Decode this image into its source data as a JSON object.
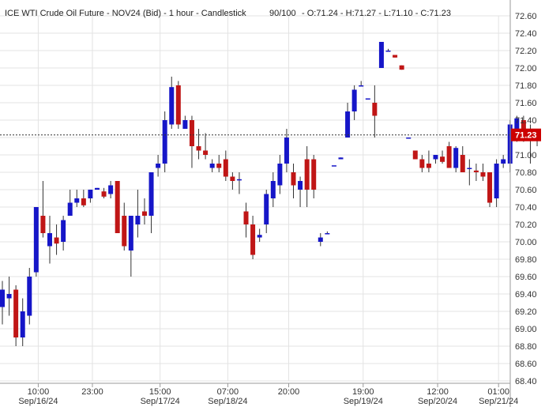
{
  "header": {
    "title": "ICE WTI Crude Oil Future - NOV24 (Bid) - 1 hour - Candlestick",
    "count": "90/100",
    "ohlc": "- O:71.24 - H:71.27 - L:71.10 - C:71.23"
  },
  "colors": {
    "up": "#1616c8",
    "down": "#c01616",
    "grid": "#e3e3e3",
    "last_price_bg": "#cc0000",
    "last_line": "#333333"
  },
  "chart_data": {
    "type": "candlestick",
    "instrument": "ICE WTI Crude Oil Future - NOV24 (Bid)",
    "interval": "1 hour",
    "y_axis": {
      "min": 68.4,
      "max": 72.6,
      "step": 0.2,
      "ticks": [
        "72.60",
        "72.40",
        "72.20",
        "72.00",
        "71.80",
        "71.60",
        "71.40",
        "71.20",
        "71.00",
        "70.80",
        "70.60",
        "70.40",
        "70.20",
        "70.00",
        "69.80",
        "69.60",
        "69.40",
        "69.20",
        "69.00",
        "68.80",
        "68.60",
        "68.40"
      ],
      "position": "right"
    },
    "x_axis": {
      "ticks": [
        {
          "time": "10:00",
          "date": "Sep/16/24",
          "index": 2
        },
        {
          "time": "23:00",
          "date": "",
          "index": 10
        },
        {
          "time": "15:00",
          "date": "Sep/17/24",
          "index": 20
        },
        {
          "time": "07:00",
          "date": "Sep/18/24",
          "index": 30
        },
        {
          "time": "20:00",
          "date": "",
          "index": 39
        },
        {
          "time": "19:00",
          "date": "Sep/19/24",
          "index": 50
        },
        {
          "time": "12:00",
          "date": "Sep/20/24",
          "index": 61
        },
        {
          "time": "01:00",
          "date": "Sep/21/24",
          "index": 70
        }
      ]
    },
    "last_price": 71.23,
    "grid": true,
    "candles": [
      {
        "o": 69.25,
        "h": 69.55,
        "l": 69.05,
        "c": 69.45
      },
      {
        "o": 69.35,
        "h": 69.6,
        "l": 69.15,
        "c": 69.4
      },
      {
        "o": 69.45,
        "h": 69.5,
        "l": 68.8,
        "c": 68.9
      },
      {
        "o": 68.9,
        "h": 69.35,
        "l": 68.8,
        "c": 69.2
      },
      {
        "o": 69.15,
        "h": 69.7,
        "l": 69.05,
        "c": 69.6
      },
      {
        "o": 69.65,
        "h": 70.4,
        "l": 69.6,
        "c": 70.4
      },
      {
        "o": 70.3,
        "h": 70.7,
        "l": 70.05,
        "c": 70.1
      },
      {
        "o": 69.95,
        "h": 70.3,
        "l": 69.75,
        "c": 70.1
      },
      {
        "o": 70.05,
        "h": 70.2,
        "l": 69.85,
        "c": 69.98
      },
      {
        "o": 70.0,
        "h": 70.3,
        "l": 69.9,
        "c": 70.25
      },
      {
        "o": 70.3,
        "h": 70.6,
        "l": 70.3,
        "c": 70.45
      },
      {
        "o": 70.45,
        "h": 70.6,
        "l": 70.4,
        "c": 70.5
      },
      {
        "o": 70.5,
        "h": 70.6,
        "l": 70.4,
        "c": 70.42
      },
      {
        "o": 70.5,
        "h": 70.6,
        "l": 70.45,
        "c": 70.6
      },
      {
        "o": 70.6,
        "h": 70.62,
        "l": 70.6,
        "c": 70.62
      },
      {
        "o": 70.58,
        "h": 70.62,
        "l": 70.5,
        "c": 70.52
      },
      {
        "o": 70.55,
        "h": 70.7,
        "l": 70.5,
        "c": 70.65
      },
      {
        "o": 70.7,
        "h": 70.7,
        "l": 70.1,
        "c": 70.1
      },
      {
        "o": 70.3,
        "h": 70.45,
        "l": 69.9,
        "c": 69.95
      },
      {
        "o": 69.9,
        "h": 70.3,
        "l": 69.6,
        "c": 70.3
      },
      {
        "o": 70.2,
        "h": 70.6,
        "l": 70.05,
        "c": 70.3
      },
      {
        "o": 70.35,
        "h": 70.5,
        "l": 70.2,
        "c": 70.3
      },
      {
        "o": 70.3,
        "h": 70.8,
        "l": 70.1,
        "c": 70.8
      },
      {
        "o": 70.85,
        "h": 71.0,
        "l": 70.75,
        "c": 70.9
      },
      {
        "o": 70.9,
        "h": 71.5,
        "l": 70.8,
        "c": 71.4
      },
      {
        "o": 71.35,
        "h": 71.9,
        "l": 71.3,
        "c": 71.78
      },
      {
        "o": 71.8,
        "h": 71.85,
        "l": 71.3,
        "c": 71.35
      },
      {
        "o": 71.3,
        "h": 71.45,
        "l": 71.3,
        "c": 71.4
      },
      {
        "o": 71.4,
        "h": 71.45,
        "l": 70.85,
        "c": 71.1
      },
      {
        "o": 71.1,
        "h": 71.3,
        "l": 70.95,
        "c": 71.05
      },
      {
        "o": 71.05,
        "h": 71.25,
        "l": 70.95,
        "c": 71.0
      },
      {
        "o": 70.85,
        "h": 70.95,
        "l": 70.8,
        "c": 70.9
      },
      {
        "o": 70.9,
        "h": 71.0,
        "l": 70.8,
        "c": 70.85
      },
      {
        "o": 70.95,
        "h": 71.05,
        "l": 70.7,
        "c": 70.75
      },
      {
        "o": 70.75,
        "h": 70.8,
        "l": 70.6,
        "c": 70.7
      },
      {
        "o": 70.72,
        "h": 70.8,
        "l": 70.55,
        "c": 70.72
      },
      {
        "o": 70.35,
        "h": 70.45,
        "l": 70.05,
        "c": 70.2
      },
      {
        "o": 70.2,
        "h": 70.3,
        "l": 69.8,
        "c": 69.85
      },
      {
        "o": 70.05,
        "h": 70.15,
        "l": 70.0,
        "c": 70.08
      },
      {
        "o": 70.2,
        "h": 70.6,
        "l": 70.1,
        "c": 70.55
      },
      {
        "o": 70.5,
        "h": 70.8,
        "l": 70.4,
        "c": 70.7
      },
      {
        "o": 70.65,
        "h": 71.0,
        "l": 70.55,
        "c": 70.9
      },
      {
        "o": 70.9,
        "h": 71.3,
        "l": 70.8,
        "c": 71.2
      },
      {
        "o": 70.8,
        "h": 70.9,
        "l": 70.5,
        "c": 70.65
      },
      {
        "o": 70.6,
        "h": 70.75,
        "l": 70.4,
        "c": 70.7
      },
      {
        "o": 70.95,
        "h": 71.1,
        "l": 70.4,
        "c": 70.6
      },
      {
        "o": 70.95,
        "h": 71.0,
        "l": 70.5,
        "c": 70.6
      },
      {
        "o": 70.0,
        "h": 70.1,
        "l": 69.95,
        "c": 70.05
      },
      {
        "o": 70.1,
        "h": 70.12,
        "l": 70.1,
        "c": 70.1
      },
      {
        "o": 70.88,
        "h": 70.88,
        "l": 70.88,
        "c": 70.88
      },
      {
        "o": 70.95,
        "h": 70.97,
        "l": 70.95,
        "c": 70.97
      },
      {
        "o": 71.2,
        "h": 71.6,
        "l": 71.2,
        "c": 71.5
      },
      {
        "o": 71.5,
        "h": 71.8,
        "l": 71.4,
        "c": 71.75
      },
      {
        "o": 71.8,
        "h": 71.85,
        "l": 71.8,
        "c": 71.8
      },
      {
        "o": 71.65,
        "h": 71.65,
        "l": 71.65,
        "c": 71.65
      },
      {
        "o": 71.6,
        "h": 71.8,
        "l": 71.2,
        "c": 71.45
      },
      {
        "o": 72.0,
        "h": 72.3,
        "l": 72.0,
        "c": 72.3
      },
      {
        "o": 72.2,
        "h": 72.22,
        "l": 72.2,
        "c": 72.2
      },
      {
        "o": 72.15,
        "h": 72.15,
        "l": 72.12,
        "c": 72.12
      },
      {
        "o": 72.03,
        "h": 72.03,
        "l": 71.98,
        "c": 71.98
      },
      {
        "o": 71.2,
        "h": 71.2,
        "l": 71.2,
        "c": 71.2
      },
      {
        "o": 71.05,
        "h": 71.05,
        "l": 70.95,
        "c": 70.95
      },
      {
        "o": 70.95,
        "h": 71.0,
        "l": 70.8,
        "c": 70.85
      },
      {
        "o": 70.9,
        "h": 71.05,
        "l": 70.8,
        "c": 70.85
      },
      {
        "o": 70.95,
        "h": 71.0,
        "l": 70.9,
        "c": 71.0
      },
      {
        "o": 70.98,
        "h": 71.05,
        "l": 70.9,
        "c": 70.92
      },
      {
        "o": 71.1,
        "h": 71.15,
        "l": 70.85,
        "c": 70.85
      },
      {
        "o": 70.85,
        "h": 71.1,
        "l": 70.8,
        "c": 71.08
      },
      {
        "o": 71.0,
        "h": 71.1,
        "l": 70.8,
        "c": 70.8
      },
      {
        "o": 70.85,
        "h": 70.95,
        "l": 70.65,
        "c": 70.85
      },
      {
        "o": 70.82,
        "h": 70.9,
        "l": 70.7,
        "c": 70.8
      },
      {
        "o": 70.8,
        "h": 70.9,
        "l": 70.7,
        "c": 70.75
      },
      {
        "o": 70.8,
        "h": 70.8,
        "l": 70.4,
        "c": 70.45
      },
      {
        "o": 70.5,
        "h": 70.95,
        "l": 70.4,
        "c": 70.9
      },
      {
        "o": 70.9,
        "h": 71.0,
        "l": 70.85,
        "c": 70.95
      },
      {
        "o": 70.9,
        "h": 71.4,
        "l": 70.8,
        "c": 71.35
      },
      {
        "o": 71.3,
        "h": 71.45,
        "l": 71.15,
        "c": 71.42
      },
      {
        "o": 71.4,
        "h": 71.45,
        "l": 71.15,
        "c": 71.2
      },
      {
        "o": 71.2,
        "h": 71.35,
        "l": 70.9,
        "c": 71.25
      },
      {
        "o": 71.24,
        "h": 71.27,
        "l": 71.1,
        "c": 71.23
      }
    ]
  }
}
